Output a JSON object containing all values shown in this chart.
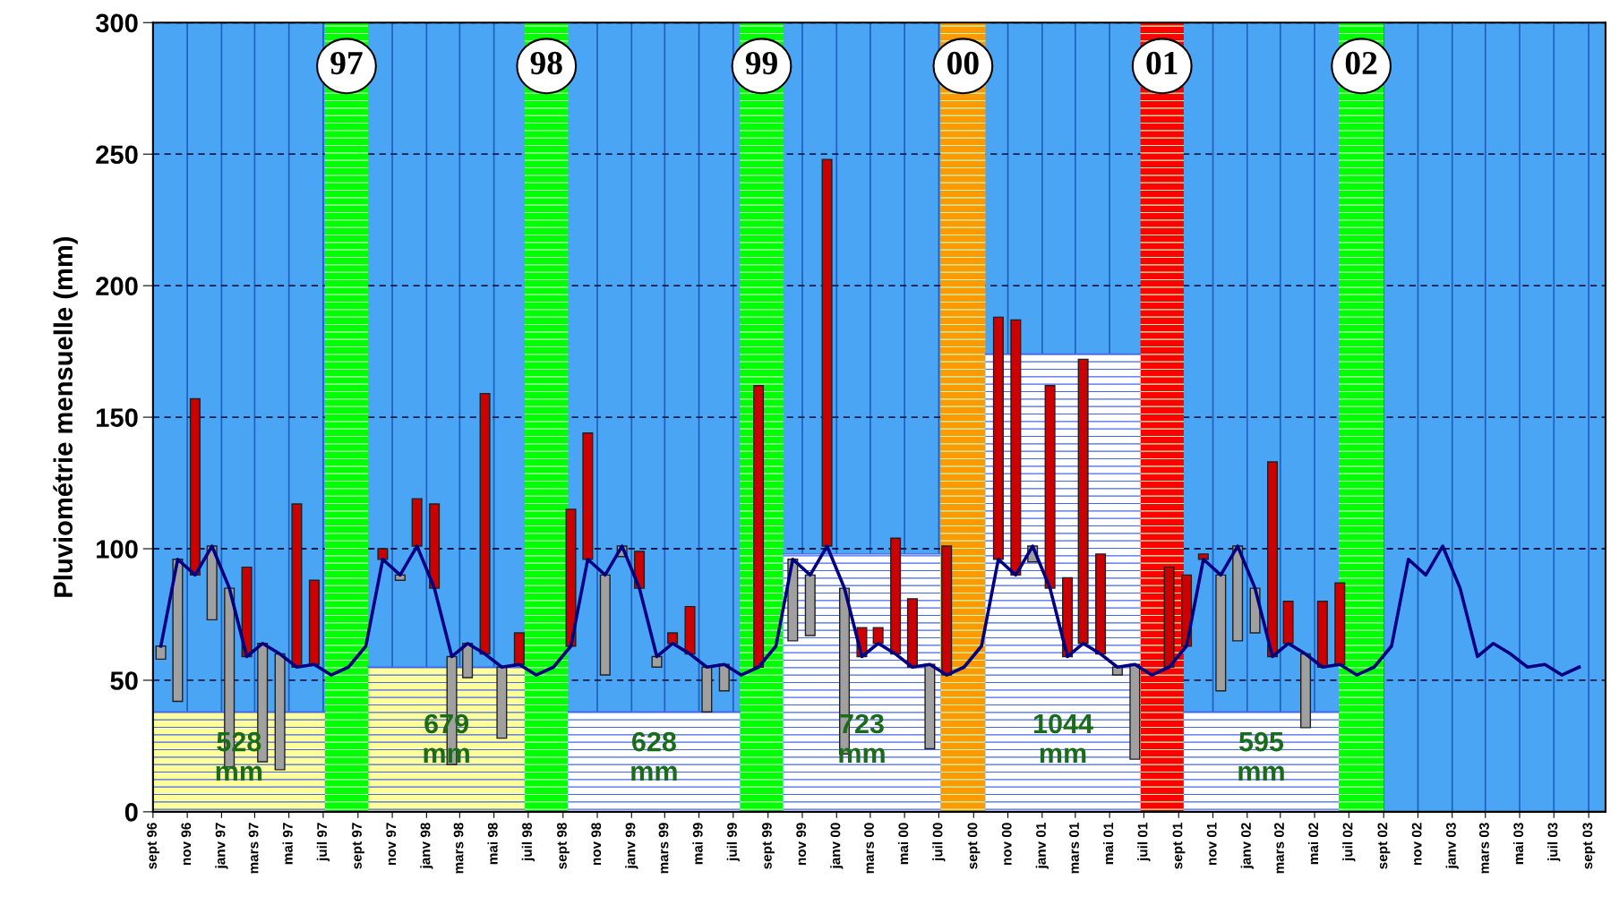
{
  "chart_data": {
    "type": "bar",
    "ylabel": "Pluviométrie mensuelle (mm)",
    "x": [
      "1996-09-15",
      "1996-10-15",
      "1996-11-15",
      "1996-12-15",
      "1997-01-15",
      "1997-02-15",
      "1997-03-15",
      "1997-04-15",
      "1997-05-15",
      "1997-06-15",
      "1997-07-15",
      "1997-08-15",
      "1997-09-15",
      "1997-10-15",
      "1997-11-15",
      "1997-12-15",
      "1998-01-15",
      "1998-02-15",
      "1998-03-15",
      "1998-04-15",
      "1998-05-15",
      "1998-06-15",
      "1998-07-15",
      "1998-08-15",
      "1998-09-15",
      "1998-10-15",
      "1998-11-15",
      "1998-12-15",
      "1999-01-15",
      "1999-02-15",
      "1999-03-15",
      "1999-04-15",
      "1999-05-15",
      "1999-06-15",
      "1999-07-15",
      "1999-08-15",
      "1999-09-15",
      "1999-10-15",
      "1999-11-15",
      "1999-12-15",
      "2000-01-15",
      "2000-02-15",
      "2000-03-15",
      "2000-04-15",
      "2000-05-15",
      "2000-06-15",
      "2000-07-15",
      "2000-08-15",
      "2000-09-15",
      "2000-10-15",
      "2000-11-15",
      "2000-12-15",
      "2001-01-15",
      "2001-02-15",
      "2001-03-15",
      "2001-04-15",
      "2001-05-15",
      "2001-06-15",
      "2001-07-15",
      "2001-08-15",
      "2001-09-15",
      "2001-10-15",
      "2001-11-15",
      "2001-12-15",
      "2002-01-15",
      "2002-02-15",
      "2002-03-15",
      "2002-04-15",
      "2002-05-15",
      "2002-06-15",
      "2002-07-15",
      "2002-08-15",
      "2002-09-15",
      "2002-10-15",
      "2002-11-15",
      "2002-12-15",
      "2003-01-15",
      "2003-02-15",
      "2003-03-15",
      "2003-04-15",
      "2003-05-15",
      "2003-06-15",
      "2003-07-15",
      "2003-08-15"
    ],
    "series": [
      {
        "type": "area",
        "x": [
          "1996-09-01",
          "1997-07-04"
        ],
        "values": [
          38,
          38
        ],
        "color": "#ffff99"
      },
      {
        "type": "area",
        "x": [
          "1997-09-19",
          "1998-06-25"
        ],
        "values": [
          55,
          55
        ],
        "color": "#ffff99"
      },
      {
        "type": "area",
        "x": [
          "1998-09-10",
          "1999-07-13"
        ],
        "values": [
          38,
          38
        ],
        "color": "#ffffff"
      },
      {
        "type": "area",
        "x": [
          "1999-09-28",
          "2000-07-04"
        ],
        "values": [
          98,
          98
        ],
        "color": "#ffffff"
      },
      {
        "type": "area",
        "x": [
          "2000-09-22",
          "2001-06-25"
        ],
        "values": [
          174,
          174
        ],
        "color": "#ffffff"
      },
      {
        "type": "area",
        "x": [
          "2001-09-10",
          "2002-06-13"
        ],
        "values": [
          38,
          38
        ],
        "color": "#ffffff"
      },
      {
        "color": "#cc0000",
        "base": [
          null,
          null,
          90,
          null,
          null,
          59,
          null,
          null,
          55,
          56,
          null,
          null,
          null,
          96,
          null,
          101,
          85,
          null,
          null,
          60,
          null,
          56,
          null,
          null,
          63,
          96,
          null,
          null,
          85,
          null,
          64,
          60,
          null,
          null,
          null,
          55,
          null,
          null,
          null,
          101,
          null,
          59,
          64,
          60,
          55,
          null,
          52,
          null,
          null,
          96,
          90,
          null,
          85,
          59,
          64,
          60,
          null,
          null,
          null,
          55,
          63,
          96,
          null,
          null,
          null,
          59,
          64,
          null,
          55,
          56,
          null,
          null,
          null,
          null,
          null,
          null,
          null,
          null,
          null,
          null,
          null,
          null,
          null,
          null
        ],
        "values": [
          null,
          null,
          67,
          null,
          null,
          34,
          null,
          null,
          62,
          32,
          null,
          null,
          null,
          4,
          null,
          18,
          32,
          null,
          null,
          99,
          null,
          12,
          null,
          null,
          52,
          48,
          null,
          null,
          14,
          null,
          4,
          18,
          null,
          null,
          null,
          107,
          null,
          null,
          null,
          147,
          null,
          11,
          6,
          44,
          26,
          null,
          49,
          null,
          null,
          92,
          97,
          null,
          77,
          30,
          108,
          38,
          null,
          null,
          null,
          38,
          27,
          2,
          null,
          null,
          null,
          74,
          16,
          null,
          25,
          31,
          null,
          null,
          null,
          null,
          null,
          null,
          null,
          null,
          null,
          null,
          null,
          null,
          null,
          null
        ]
      },
      {
        "color": "#a0a0a0",
        "base": [
          63,
          96,
          null,
          101,
          85,
          null,
          64,
          60,
          null,
          null,
          null,
          null,
          null,
          null,
          90,
          null,
          null,
          59,
          64,
          null,
          55,
          null,
          null,
          null,
          null,
          null,
          90,
          101,
          null,
          59,
          null,
          null,
          55,
          56,
          null,
          null,
          null,
          96,
          90,
          null,
          85,
          null,
          null,
          null,
          null,
          56,
          null,
          null,
          null,
          null,
          null,
          101,
          null,
          null,
          null,
          null,
          55,
          56,
          null,
          null,
          null,
          null,
          90,
          101,
          85,
          null,
          null,
          60,
          null,
          null,
          null,
          null,
          null,
          null,
          null,
          null,
          null,
          null,
          null,
          null,
          null,
          null,
          null,
          null
        ],
        "values": [
          -5,
          -54,
          null,
          -28,
          -68,
          null,
          -45,
          -44,
          null,
          null,
          null,
          null,
          null,
          null,
          -2,
          null,
          null,
          -41,
          -13,
          null,
          -27,
          null,
          null,
          null,
          null,
          null,
          -38,
          -4,
          null,
          -4,
          null,
          null,
          -17,
          -10,
          null,
          null,
          null,
          -31,
          -23,
          null,
          -63,
          null,
          null,
          null,
          null,
          -32,
          null,
          null,
          null,
          null,
          null,
          -6,
          null,
          null,
          null,
          null,
          -3,
          -36,
          null,
          null,
          null,
          null,
          -44,
          -36,
          -17,
          null,
          null,
          -28,
          null,
          null,
          null,
          null,
          null,
          null,
          null,
          null,
          null,
          null,
          null,
          null,
          null,
          null,
          null,
          null
        ]
      },
      {
        "type": "line",
        "color": "#000080",
        "values": [
          63,
          96,
          90,
          101,
          85,
          59,
          64,
          60,
          55,
          56,
          52,
          55,
          63,
          96,
          90,
          101,
          85,
          59,
          64,
          60,
          55,
          56,
          52,
          55,
          63,
          96,
          90,
          101,
          85,
          59,
          64,
          60,
          55,
          56,
          52,
          55,
          63,
          96,
          90,
          101,
          85,
          59,
          64,
          60,
          55,
          56,
          52,
          55,
          63,
          96,
          90,
          101,
          85,
          59,
          64,
          60,
          55,
          56,
          52,
          55,
          63,
          96,
          90,
          101,
          85,
          59,
          64,
          60,
          55,
          56,
          52,
          55,
          63,
          96,
          90,
          101,
          85,
          59,
          64,
          60,
          55,
          56,
          52,
          55
        ]
      }
    ],
    "bands": [
      {
        "axis": "x",
        "from": "1997-07-04",
        "to": "1997-09-19",
        "label": "97",
        "color": "#00ff00"
      },
      {
        "axis": "x",
        "from": "1998-06-25",
        "to": "1998-09-10",
        "label": "98",
        "color": "#00ff00"
      },
      {
        "axis": "x",
        "from": "1999-07-13",
        "to": "1999-09-28",
        "label": "99",
        "color": "#00ff00"
      },
      {
        "axis": "x",
        "from": "2000-07-04",
        "to": "2000-09-22",
        "label": "00",
        "color": "#ff9900"
      },
      {
        "axis": "x",
        "from": "2001-06-25",
        "to": "2001-09-10",
        "label": "01",
        "color": "#ff0000"
      },
      {
        "axis": "x",
        "from": "2002-06-13",
        "to": "2002-09-01",
        "label": "02",
        "color": "#00ff00"
      }
    ],
    "annotations": [
      "528\nmm",
      "679\nmm",
      "628\nmm",
      "723\nmm",
      "1044\nmm",
      "595\nmm"
    ],
    "xlim": [
      "1996-09-01",
      "2003-10-01"
    ],
    "ylim": [
      0,
      300
    ],
    "yticks": [
      0,
      50,
      100,
      150,
      200,
      250,
      300
    ],
    "xticks": [
      {
        "value": "1996-09",
        "label": "sept 96"
      },
      {
        "value": "1996-11",
        "label": "nov 96"
      },
      {
        "value": "1997-01",
        "label": "janv 97"
      },
      {
        "value": "1997-03",
        "label": "mars 97"
      },
      {
        "value": "1997-05",
        "label": "mai 97"
      },
      {
        "value": "1997-07",
        "label": "juil 97"
      },
      {
        "value": "1997-09",
        "label": "sept 97"
      },
      {
        "value": "1997-11",
        "label": "nov 97"
      },
      {
        "value": "1998-01",
        "label": "janv 98"
      },
      {
        "value": "1998-03",
        "label": "mars 98"
      },
      {
        "value": "1998-05",
        "label": "mai 98"
      },
      {
        "value": "1998-07",
        "label": "juil 98"
      },
      {
        "value": "1998-09",
        "label": "sept 98"
      },
      {
        "value": "1998-11",
        "label": "nov 98"
      },
      {
        "value": "1999-01",
        "label": "janv 99"
      },
      {
        "value": "1999-03",
        "label": "mars 99"
      },
      {
        "value": "1999-05",
        "label": "mai 99"
      },
      {
        "value": "1999-07",
        "label": "juil 99"
      },
      {
        "value": "1999-09",
        "label": "sept 99"
      },
      {
        "value": "1999-11",
        "label": "nov 99"
      },
      {
        "value": "2000-01",
        "label": "janv 00"
      },
      {
        "value": "2000-03",
        "label": "mars 00"
      },
      {
        "value": "2000-05",
        "label": "mai 00"
      },
      {
        "value": "2000-07",
        "label": "juil 00"
      },
      {
        "value": "2000-09",
        "label": "sept 00"
      },
      {
        "value": "2000-11",
        "label": "nov 00"
      },
      {
        "value": "2001-01",
        "label": "janv 01"
      },
      {
        "value": "2001-03",
        "label": "mars 01"
      },
      {
        "value": "2001-05",
        "label": "mai 01"
      },
      {
        "value": "2001-07",
        "label": "juil 01"
      },
      {
        "value": "2001-09",
        "label": "sept 01"
      },
      {
        "value": "2001-11",
        "label": "nov 01"
      },
      {
        "value": "2002-01",
        "label": "janv 02"
      },
      {
        "value": "2002-03",
        "label": "mars 02"
      },
      {
        "value": "2002-05",
        "label": "mai 02"
      },
      {
        "value": "2002-07",
        "label": "juil 02"
      },
      {
        "value": "2002-09",
        "label": "sept 02"
      },
      {
        "value": "2002-11",
        "label": "nov 02"
      },
      {
        "value": "2003-01",
        "label": "janv 03"
      },
      {
        "value": "2003-03",
        "label": "mars 03"
      },
      {
        "value": "2003-05",
        "label": "mai 03"
      },
      {
        "value": "2003-07",
        "label": "juil 03"
      },
      {
        "value": "2003-09",
        "label": "sept 03"
      }
    ],
    "grid": true
  }
}
